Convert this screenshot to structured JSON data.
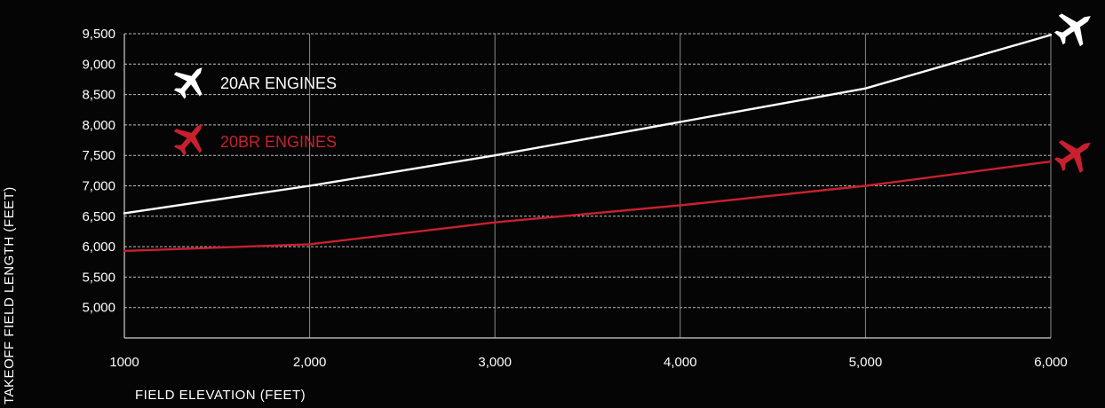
{
  "chart_data": {
    "type": "line",
    "xlabel": "FIELD ELEVATION (FEET)",
    "ylabel": "TAKEOFF FIELD LENGTH (FEET)",
    "x": [
      1000,
      2000,
      3000,
      4000,
      5000,
      6000
    ],
    "x_tick_labels": [
      "1000",
      "2,000",
      "3,000",
      "4,000",
      "5,000",
      "6,000"
    ],
    "xlim": [
      1000,
      6000
    ],
    "y_ticks": [
      5000,
      5500,
      6000,
      6500,
      7000,
      7500,
      8000,
      8500,
      9000,
      9500
    ],
    "y_tick_labels": [
      "5,000",
      "5,500",
      "6,000",
      "6,500",
      "7,000",
      "7,500",
      "8,000",
      "8,500",
      "9,000",
      "9,500"
    ],
    "ylim": [
      4500,
      9500
    ],
    "grid": true,
    "legend_position": "top-left",
    "series": [
      {
        "name": "20AR ENGINES",
        "color": "#ffffff",
        "icon": "airplane-icon",
        "values": [
          6550,
          7000,
          7500,
          8050,
          8600,
          9480
        ]
      },
      {
        "name": "20BR ENGINES",
        "color": "#c8202f",
        "icon": "airplane-icon",
        "values": [
          5930,
          6040,
          6400,
          6680,
          7000,
          7400
        ]
      }
    ]
  }
}
